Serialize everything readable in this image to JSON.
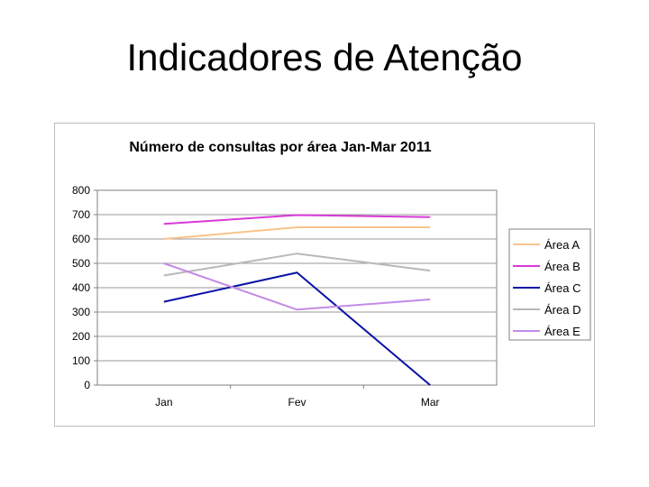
{
  "slide": {
    "title": "Indicadores de Atenção"
  },
  "chart_data": {
    "type": "line",
    "title": "Número de consultas por área Jan-Mar 2011",
    "categories": [
      "Jan",
      "Fev",
      "Mar"
    ],
    "ylim": [
      0,
      800
    ],
    "yticks": [
      0,
      100,
      200,
      300,
      400,
      500,
      600,
      700,
      800
    ],
    "grid": true,
    "legend_position": "right",
    "plot_background": "#ffffff",
    "series": [
      {
        "name": "Área A",
        "values": [
          600,
          648,
          648
        ],
        "color": "#f9c48c"
      },
      {
        "name": "Área B",
        "values": [
          662,
          698,
          690
        ],
        "color": "#d93ad9"
      },
      {
        "name": "Área C",
        "values": [
          342,
          462,
          0
        ],
        "color": "#0a12a8"
      },
      {
        "name": "Área D",
        "values": [
          450,
          540,
          470
        ],
        "color": "#b8b8b8"
      },
      {
        "name": "Área E",
        "values": [
          500,
          310,
          352
        ],
        "color": "#c48be6"
      }
    ]
  }
}
